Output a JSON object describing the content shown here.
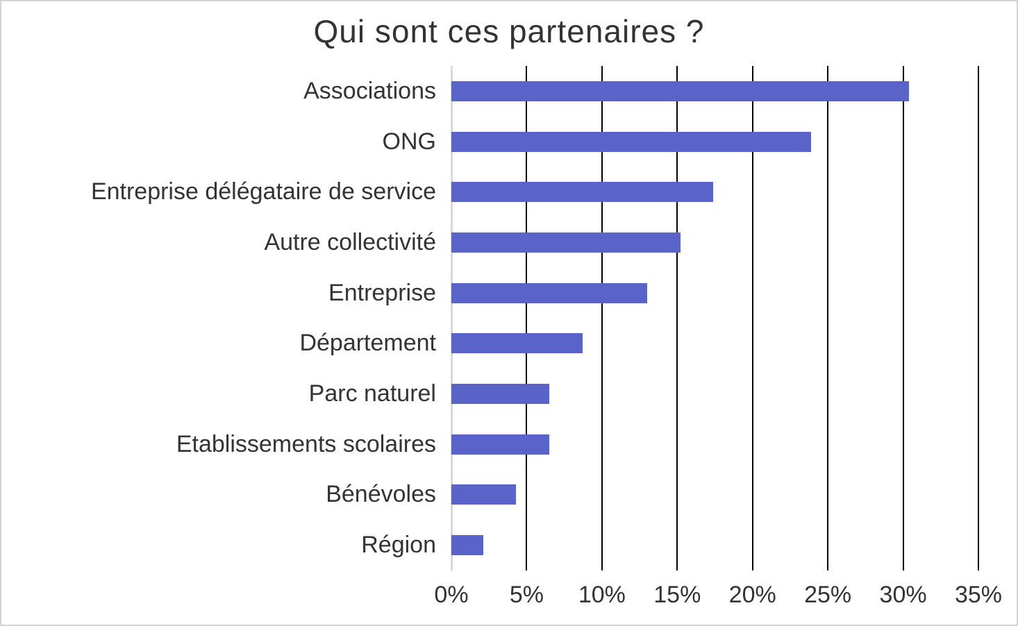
{
  "chart_data": {
    "type": "bar",
    "orientation": "horizontal",
    "title": "Qui sont ces partenaires ?",
    "categories": [
      "Associations",
      "ONG",
      "Entreprise délégataire de service",
      "Autre collectivité",
      "Entreprise",
      "Département",
      "Parc naturel",
      "Etablissements scolaires",
      "Bénévoles",
      "Région"
    ],
    "values": [
      30.4,
      23.9,
      17.4,
      15.2,
      13.0,
      8.7,
      6.5,
      6.5,
      4.3,
      2.1
    ],
    "unit": "%",
    "xlabel": "",
    "ylabel": "",
    "xlim": [
      0,
      35
    ],
    "x_tick_step": 5,
    "x_ticks": [
      "0%",
      "5%",
      "10%",
      "15%",
      "20%",
      "25%",
      "30%",
      "35%"
    ],
    "grid": "vertical",
    "legend": "none",
    "colors": {
      "bar": "#5a64c8",
      "gridline": "#000000",
      "zero_axis": "#d9d9d9",
      "text": "#333333",
      "background": "#ffffff",
      "frame_border": "#d2d2d2"
    }
  }
}
